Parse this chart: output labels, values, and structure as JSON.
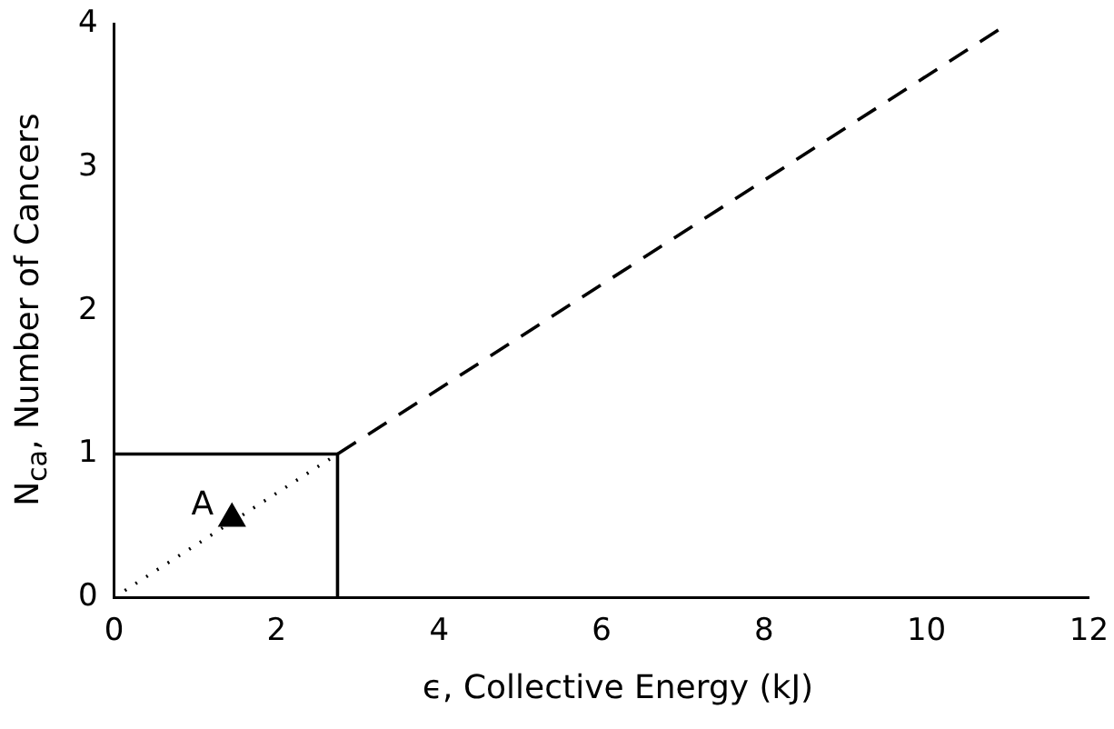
{
  "chart_data": {
    "type": "line",
    "xlabel": "ϵ, Collective Energy (kJ)",
    "ylabel": "N$_{ca}$, Number of Cancers",
    "xlim": [
      0,
      12
    ],
    "xticks": [
      0,
      2,
      4,
      6,
      8,
      10,
      12
    ],
    "ylim": [
      0,
      4
    ],
    "yticks": [
      0,
      1,
      2,
      3,
      4
    ],
    "grid": false,
    "legend": false,
    "series": [
      {
        "x": [
          0,
          2.75,
          2.75
        ],
        "values": [
          1,
          1,
          0
        ],
        "color": "#000000",
        "line_style": "solid",
        "marker": "none"
      },
      {
        "x": [
          0,
          2.75,
          11
        ],
        "values": [
          0,
          1,
          4
        ],
        "color": "#000000",
        "line_style": [
          "dotted",
          "dashed"
        ],
        "marker": "none"
      },
      {
        "type": "scatter",
        "x": [
          1.45
        ],
        "values": [
          0.55
        ],
        "color": "#000000",
        "marker": "triangle"
      }
    ],
    "annotations": [
      {
        "text": "A",
        "x": 1.45,
        "y": 0.55
      }
    ]
  }
}
